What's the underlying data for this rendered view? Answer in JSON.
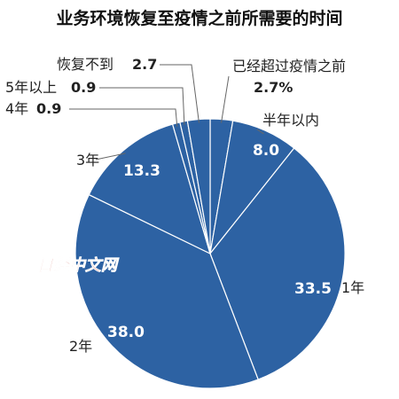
{
  "chart_data": {
    "type": "pie",
    "title": "业务环境恢复至疫情之前所需要的时间",
    "colors": {
      "fill": "#2d62a3",
      "stroke": "#ffffff",
      "leader": "#666666"
    },
    "slices": [
      {
        "label": "已经超过疫情之前",
        "value": 2.7,
        "display": "2.7%"
      },
      {
        "label": "半年以内",
        "value": 8.0,
        "display": "8.0"
      },
      {
        "label": "1年",
        "value": 33.5,
        "display": "33.5"
      },
      {
        "label": "2年",
        "value": 38.0,
        "display": "38.0"
      },
      {
        "label": "3年",
        "value": 13.3,
        "display": "13.3"
      },
      {
        "label": "4年",
        "value": 0.9,
        "display": "0.9"
      },
      {
        "label": "5年以上",
        "value": 0.9,
        "display": "0.9"
      },
      {
        "label": "恢复不到",
        "value": 2.7,
        "display": "2.7"
      }
    ]
  },
  "watermark": "日经中文网"
}
